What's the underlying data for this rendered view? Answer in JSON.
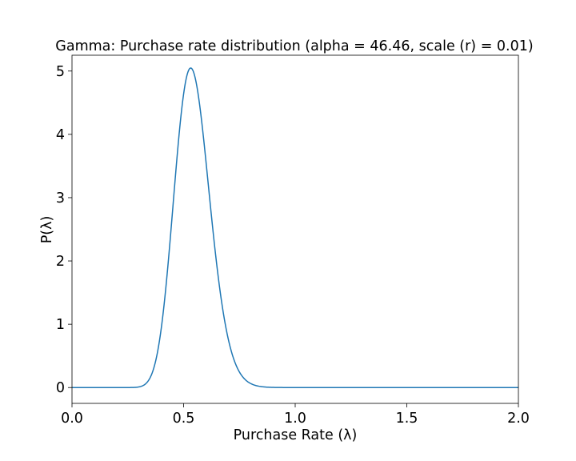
{
  "chart_data": {
    "type": "line",
    "title": "Gamma: Purchase rate distribution (alpha = 46.46, scale (r)  = 0.01)",
    "xlabel": "Purchase Rate (λ)",
    "ylabel": "P(λ)",
    "xlim": [
      0.0,
      2.0
    ],
    "ylim": [
      -0.25,
      5.25
    ],
    "xticks": [
      "0.0",
      "0.5",
      "1.0",
      "1.5",
      "2.0"
    ],
    "yticks": [
      "0",
      "1",
      "2",
      "3",
      "4",
      "5"
    ],
    "grid": false,
    "series": [
      {
        "color": "#1f77b4",
        "distribution": "gamma",
        "shape": 46.46,
        "scale": 0.0117,
        "x_range": [
          0.0,
          2.0
        ],
        "peak": {
          "x": 0.53,
          "y": 5.0
        }
      }
    ]
  }
}
